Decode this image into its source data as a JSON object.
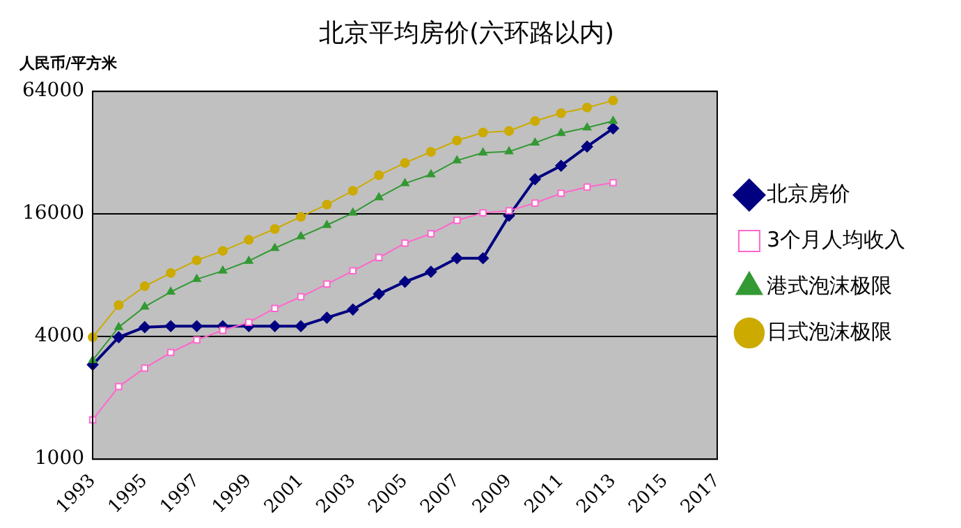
{
  "chart_data": {
    "type": "line",
    "title": "北京平均房价(六环路以内)",
    "ylabel": "人民币/平方米",
    "categories": [
      "1993",
      null,
      "1995",
      null,
      "1997",
      null,
      "1999",
      null,
      "2001",
      null,
      "2003",
      null,
      "2005",
      null,
      "2007",
      null,
      "2009",
      null,
      "2011",
      null,
      "2013",
      null,
      "2015",
      null,
      "2017"
    ],
    "series": [
      {
        "name": "北京房价",
        "color": "#000080",
        "marker": "diamond",
        "values": [
          2910,
          3970,
          4450,
          4500,
          4500,
          4500,
          4500,
          4500,
          4500,
          4950,
          5430,
          6470,
          7430,
          8320,
          9700,
          9700,
          15700,
          23700,
          27600,
          34300,
          42100,
          null,
          null,
          null,
          null
        ]
      },
      {
        "name": "3个月人均收入",
        "color": "#ff66cc",
        "marker": "square",
        "values": [
          1560,
          2270,
          2800,
          3340,
          3850,
          4290,
          4700,
          5500,
          6270,
          7240,
          8410,
          9770,
          11500,
          12800,
          14900,
          16200,
          16600,
          18100,
          20200,
          21700,
          22800,
          null,
          null,
          null,
          null
        ]
      },
      {
        "name": "港式泡沫极限",
        "color": "#339933",
        "marker": "triangle",
        "values": [
          3060,
          4450,
          5600,
          6630,
          7650,
          8410,
          9400,
          10870,
          12400,
          14100,
          16200,
          19300,
          22600,
          25000,
          29300,
          32000,
          32400,
          35800,
          39900,
          42500,
          45800,
          null,
          null,
          null,
          null
        ]
      },
      {
        "name": "日式泡沫极限",
        "color": "#ccaa00",
        "marker": "circle",
        "values": [
          3970,
          5710,
          7070,
          8210,
          9480,
          10540,
          11940,
          13500,
          15500,
          17800,
          20800,
          24800,
          28500,
          32300,
          36700,
          40200,
          40900,
          45800,
          50000,
          53300,
          57700,
          null,
          null,
          null,
          null
        ]
      }
    ],
    "log": "y",
    "ylim": [
      1000,
      64000
    ],
    "yticks": [
      1000,
      4000,
      16000,
      64000
    ],
    "grid": "y",
    "legend": "right",
    "line_style": "solid"
  }
}
